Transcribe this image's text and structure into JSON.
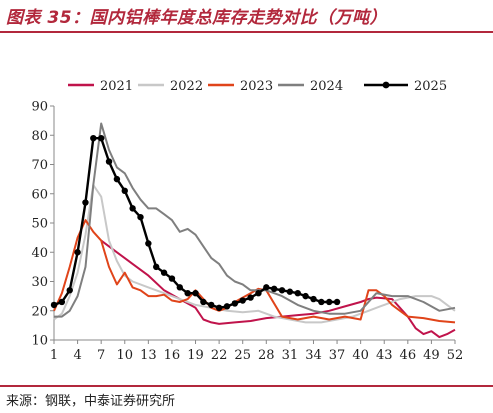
{
  "header": {
    "title": "图表 35：国内铝棒年度总库存走势对比（万吨）"
  },
  "footer": {
    "source": "来源：钢联，中泰证券研究所"
  },
  "chart_data": {
    "type": "line",
    "ylim": [
      10,
      90
    ],
    "yticks": [
      10,
      20,
      30,
      40,
      50,
      60,
      70,
      80,
      90
    ],
    "xlim": [
      1,
      52
    ],
    "xticks": [
      1,
      4,
      7,
      10,
      13,
      16,
      19,
      22,
      25,
      28,
      31,
      34,
      37,
      40,
      43,
      46,
      49,
      52
    ],
    "grid": false,
    "legend_position": "top",
    "series": [
      {
        "name": "2021",
        "color": "#c0134b",
        "marker": false,
        "x": [
          7,
          9,
          11,
          13,
          15,
          17,
          19,
          20,
          21,
          22,
          24,
          26,
          28,
          30,
          32,
          34,
          36,
          38,
          40,
          41,
          42,
          44,
          46,
          47,
          48,
          49,
          50,
          51,
          52
        ],
        "y": [
          44,
          40,
          36,
          32,
          27,
          24,
          21,
          17,
          16,
          15.5,
          16,
          16.5,
          17.5,
          18,
          18.5,
          19,
          20,
          21.5,
          23,
          24,
          24.5,
          24,
          18,
          14,
          12,
          13,
          11,
          12,
          13.5
        ]
      },
      {
        "name": "2022",
        "color": "#c8c8c8",
        "marker": false,
        "x": [
          1,
          2,
          3,
          4,
          5,
          6,
          7,
          8,
          9,
          10,
          11,
          13,
          15,
          17,
          19,
          21,
          23,
          25,
          27,
          29,
          31,
          33,
          35,
          37,
          39,
          41,
          43,
          45,
          47,
          49,
          50,
          51,
          52
        ],
        "y": [
          17,
          19,
          25,
          33,
          46,
          63,
          59,
          44,
          37,
          32,
          30,
          28,
          26,
          24,
          22,
          21,
          20,
          19.5,
          20,
          18,
          17,
          16,
          16,
          17,
          18,
          20,
          22,
          24,
          25,
          25,
          24,
          22,
          20
        ]
      },
      {
        "name": "2023",
        "color": "#e0441a",
        "marker": false,
        "x": [
          1,
          2,
          3,
          4,
          5,
          6,
          7,
          8,
          9,
          10,
          11,
          12,
          13,
          14,
          15,
          16,
          17,
          18,
          19,
          20,
          21,
          22,
          23,
          24,
          25,
          26,
          27,
          28,
          30,
          32,
          34,
          36,
          38,
          40,
          41,
          42,
          43,
          44,
          45,
          46,
          48,
          50,
          52
        ],
        "y": [
          20,
          26,
          35,
          45,
          51,
          47,
          44,
          35,
          29,
          33,
          28,
          27,
          25,
          25,
          25.5,
          23.5,
          23,
          24,
          27,
          24,
          21,
          20,
          21,
          23,
          24.5,
          26,
          27.5,
          27,
          18,
          17,
          18,
          17,
          18,
          17,
          27,
          27,
          25,
          22,
          20,
          18,
          17.5,
          16.5,
          16
        ]
      },
      {
        "name": "2024",
        "color": "#7f7f7f",
        "marker": false,
        "x": [
          1,
          2,
          3,
          4,
          5,
          6,
          7,
          8,
          9,
          10,
          11,
          12,
          13,
          14,
          15,
          16,
          17,
          18,
          19,
          20,
          21,
          22,
          23,
          24,
          25,
          26,
          27,
          28,
          29,
          30,
          32,
          34,
          36,
          38,
          40,
          42,
          44,
          46,
          48,
          50,
          52
        ],
        "y": [
          18,
          18,
          20,
          25,
          35,
          63,
          84,
          75,
          69,
          67,
          62,
          58,
          55,
          55,
          53,
          51,
          47,
          48,
          46,
          42,
          38,
          36,
          32,
          30,
          29,
          27,
          27,
          27,
          26,
          25,
          22,
          20,
          19,
          19,
          20,
          26,
          25,
          25,
          23,
          20,
          21
        ]
      },
      {
        "name": "2025",
        "color": "#000000",
        "marker": true,
        "x": [
          1,
          2,
          3,
          4,
          5,
          6,
          7,
          8,
          9,
          10,
          11,
          12,
          13,
          14,
          15,
          16,
          17,
          18,
          19,
          20,
          21,
          22,
          23,
          24,
          25,
          26,
          27,
          28,
          29,
          30,
          31,
          32,
          33,
          34,
          35,
          36,
          37
        ],
        "y": [
          22,
          23,
          27,
          40,
          57,
          79,
          79,
          71,
          65,
          61,
          55,
          52,
          43,
          35,
          33,
          31,
          28,
          26,
          26,
          23,
          22,
          21,
          21.5,
          22.5,
          23.5,
          24.5,
          26,
          28,
          27.5,
          27,
          26.5,
          26,
          25,
          24,
          23,
          23,
          23
        ]
      }
    ]
  }
}
